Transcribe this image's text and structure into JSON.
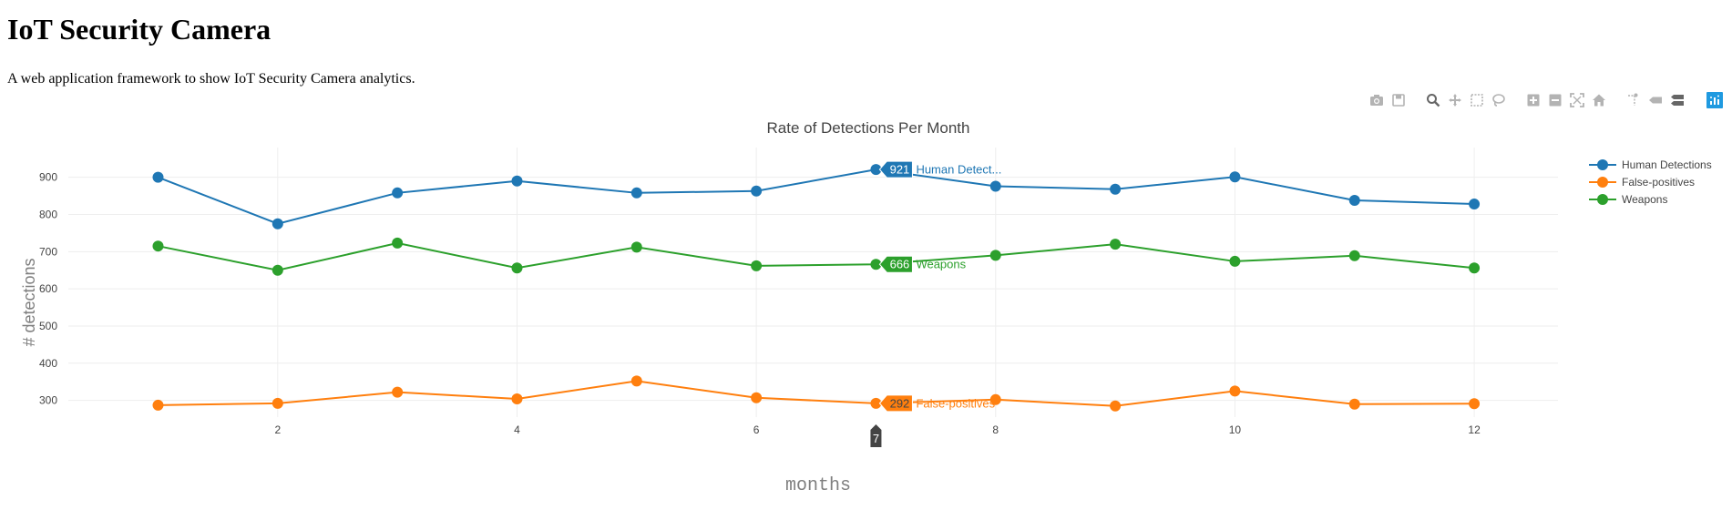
{
  "page": {
    "title": "IoT Security Camera",
    "description": "A web application framework to show IoT Security Camera analytics."
  },
  "modebar": {
    "icons": [
      "camera-icon",
      "save-icon",
      "zoom-icon",
      "pan-icon",
      "box-select-icon",
      "lasso-icon",
      "zoom-in-icon",
      "zoom-out-icon",
      "autoscale-icon",
      "home-icon",
      "spike-lines-icon",
      "hover-closest-icon",
      "hover-compare-icon",
      "plotly-logo-icon"
    ],
    "active_color": "#1f9ae0"
  },
  "chart_data": {
    "type": "line",
    "title": "Rate of Detections Per Month",
    "xlabel": "months",
    "ylabel": "# detections",
    "x": [
      1,
      2,
      3,
      4,
      5,
      6,
      7,
      8,
      9,
      10,
      11,
      12
    ],
    "xlim": [
      0.25,
      12.7
    ],
    "ylim": [
      255,
      980
    ],
    "xticks": [
      2,
      4,
      6,
      8,
      10,
      12
    ],
    "yticks": [
      300,
      400,
      500,
      600,
      700,
      800,
      900
    ],
    "grid": true,
    "legend_position": "top-right",
    "series": [
      {
        "name": "Human Detections",
        "color": "#1f77b4",
        "values": [
          900,
          775,
          858,
          890,
          858,
          863,
          921,
          876,
          868,
          901,
          838,
          828
        ]
      },
      {
        "name": "False-positives",
        "color": "#ff7f0e",
        "values": [
          287,
          292,
          322,
          304,
          352,
          307,
          292,
          302,
          285,
          325,
          290,
          291
        ]
      },
      {
        "name": "Weapons",
        "color": "#2ca02c",
        "values": [
          715,
          650,
          723,
          656,
          712,
          662,
          666,
          690,
          720,
          674,
          689,
          656
        ]
      }
    ],
    "hover": {
      "x": 7,
      "x_label": "7",
      "items": [
        {
          "value_label": "921",
          "name_label": "Human Detect..."
        },
        {
          "value_label": "666",
          "name_label": "Weapons"
        },
        {
          "value_label": "292",
          "name_label": "False-positives"
        }
      ]
    }
  }
}
